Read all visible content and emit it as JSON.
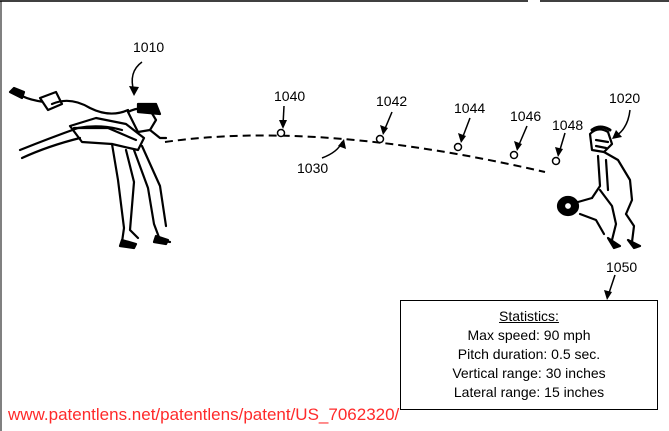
{
  "labels": {
    "pitcher": "1010",
    "catcher": "1020",
    "trajectory": "1030",
    "point1": "1040",
    "point2": "1042",
    "point3": "1044",
    "point4": "1046",
    "point5": "1048",
    "stats_ref": "1050"
  },
  "stats": {
    "title": "Statistics:",
    "lines": [
      "Max speed: 90 mph",
      "Pitch duration: 0.5 sec.",
      "Vertical range: 30 inches",
      "Lateral range: 15 inches"
    ]
  },
  "watermark": "www.patentlens.net/patentlens/patent/US_7062320/",
  "icons": {
    "pitcher": "pitcher-figure-icon",
    "catcher": "catcher-figure-icon"
  }
}
